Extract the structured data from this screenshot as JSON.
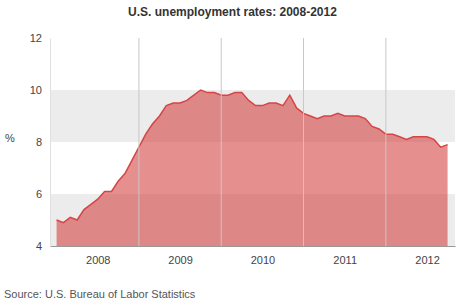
{
  "chart_data": {
    "type": "area",
    "title": "U.S. unemployment rates: 2008-2012",
    "y_label": "%",
    "source": "Source: U.S. Bureau of Labor Statistics",
    "color": "#d64545",
    "grid": true,
    "x": [
      2008,
      2008.083,
      2008.167,
      2008.25,
      2008.333,
      2008.417,
      2008.5,
      2008.583,
      2008.667,
      2008.75,
      2008.833,
      2008.917,
      2009,
      2009.083,
      2009.167,
      2009.25,
      2009.333,
      2009.417,
      2009.5,
      2009.583,
      2009.667,
      2009.75,
      2009.833,
      2009.917,
      2010,
      2010.083,
      2010.167,
      2010.25,
      2010.333,
      2010.417,
      2010.5,
      2010.583,
      2010.667,
      2010.75,
      2010.833,
      2010.917,
      2011,
      2011.083,
      2011.167,
      2011.25,
      2011.333,
      2011.417,
      2011.5,
      2011.583,
      2011.667,
      2011.75,
      2011.833,
      2011.917,
      2012,
      2012.083,
      2012.167,
      2012.25,
      2012.333,
      2012.417,
      2012.5,
      2012.583,
      2012.667,
      2012.75
    ],
    "values": [
      5.0,
      4.9,
      5.1,
      5.0,
      5.4,
      5.6,
      5.8,
      6.1,
      6.1,
      6.5,
      6.8,
      7.3,
      7.8,
      8.3,
      8.7,
      9.0,
      9.4,
      9.5,
      9.5,
      9.6,
      9.8,
      10.0,
      9.9,
      9.9,
      9.8,
      9.8,
      9.9,
      9.9,
      9.6,
      9.4,
      9.4,
      9.5,
      9.5,
      9.4,
      9.8,
      9.3,
      9.1,
      9.0,
      8.9,
      9.0,
      9.0,
      9.1,
      9.0,
      9.0,
      9.0,
      8.9,
      8.6,
      8.5,
      8.3,
      8.3,
      8.2,
      8.1,
      8.2,
      8.2,
      8.2,
      8.1,
      7.8,
      7.9
    ],
    "xlim": [
      2007.92,
      2012.84
    ],
    "xticks": [
      {
        "value": 2008.5,
        "label": "2008"
      },
      {
        "value": 2009.5,
        "label": "2009"
      },
      {
        "value": 2010.5,
        "label": "2010"
      },
      {
        "value": 2011.5,
        "label": "2011"
      },
      {
        "value": 2012.5,
        "label": "2012"
      }
    ],
    "ylim": [
      4,
      12
    ],
    "yticks": [
      4,
      6,
      8,
      10,
      12
    ]
  }
}
